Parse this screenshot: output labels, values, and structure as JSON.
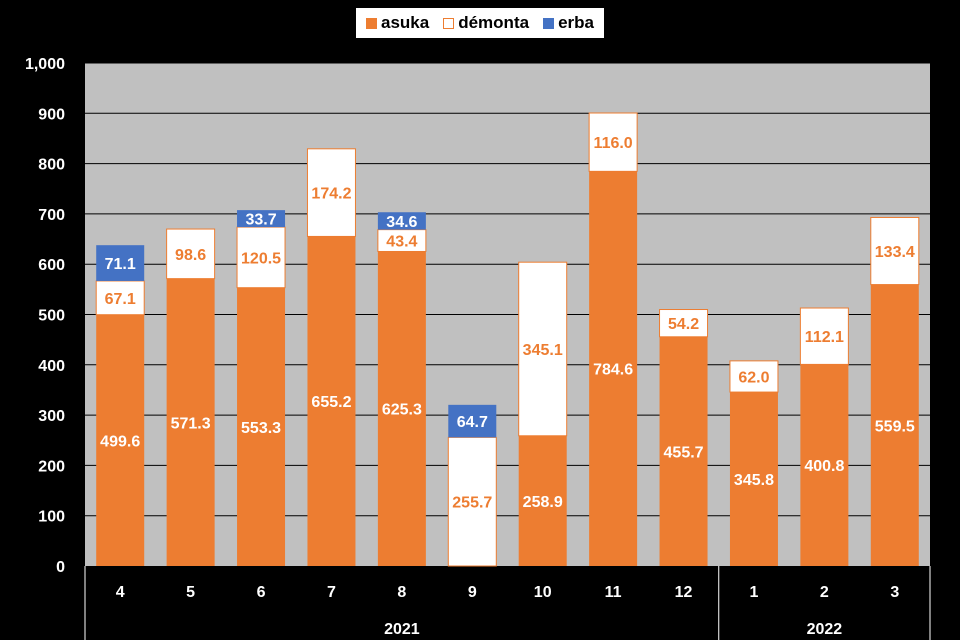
{
  "chart_data": {
    "type": "bar",
    "stacked": true,
    "categories": [
      "4",
      "5",
      "6",
      "7",
      "8",
      "9",
      "10",
      "11",
      "12",
      "1",
      "2",
      "3"
    ],
    "groups": [
      {
        "label": "2021",
        "categories": [
          "4",
          "5",
          "6",
          "7",
          "8",
          "9",
          "10",
          "11",
          "12"
        ]
      },
      {
        "label": "2022",
        "categories": [
          "1",
          "2",
          "3"
        ]
      }
    ],
    "series": [
      {
        "name": "asuka",
        "color": "#ED7D31",
        "values": [
          499.6,
          571.3,
          553.3,
          655.2,
          625.3,
          0,
          258.9,
          784.6,
          455.7,
          345.8,
          400.8,
          559.5
        ]
      },
      {
        "name": "démonta",
        "color": "#FFFFFF",
        "values": [
          67.1,
          98.6,
          120.5,
          174.2,
          43.4,
          255.7,
          345.1,
          116.0,
          54.2,
          62.0,
          112.1,
          133.4
        ]
      },
      {
        "name": "erba",
        "color": "#4472C4",
        "values": [
          71.1,
          null,
          33.7,
          null,
          34.6,
          64.7,
          null,
          null,
          null,
          null,
          null,
          null
        ]
      }
    ],
    "ylim": [
      0,
      1000
    ],
    "yticks": [
      "0",
      "100",
      "200",
      "300",
      "400",
      "500",
      "600",
      "700",
      "800",
      "900",
      "1,000"
    ],
    "grid": true,
    "legend_position": "top",
    "plot_background": "#C0C0C0"
  }
}
